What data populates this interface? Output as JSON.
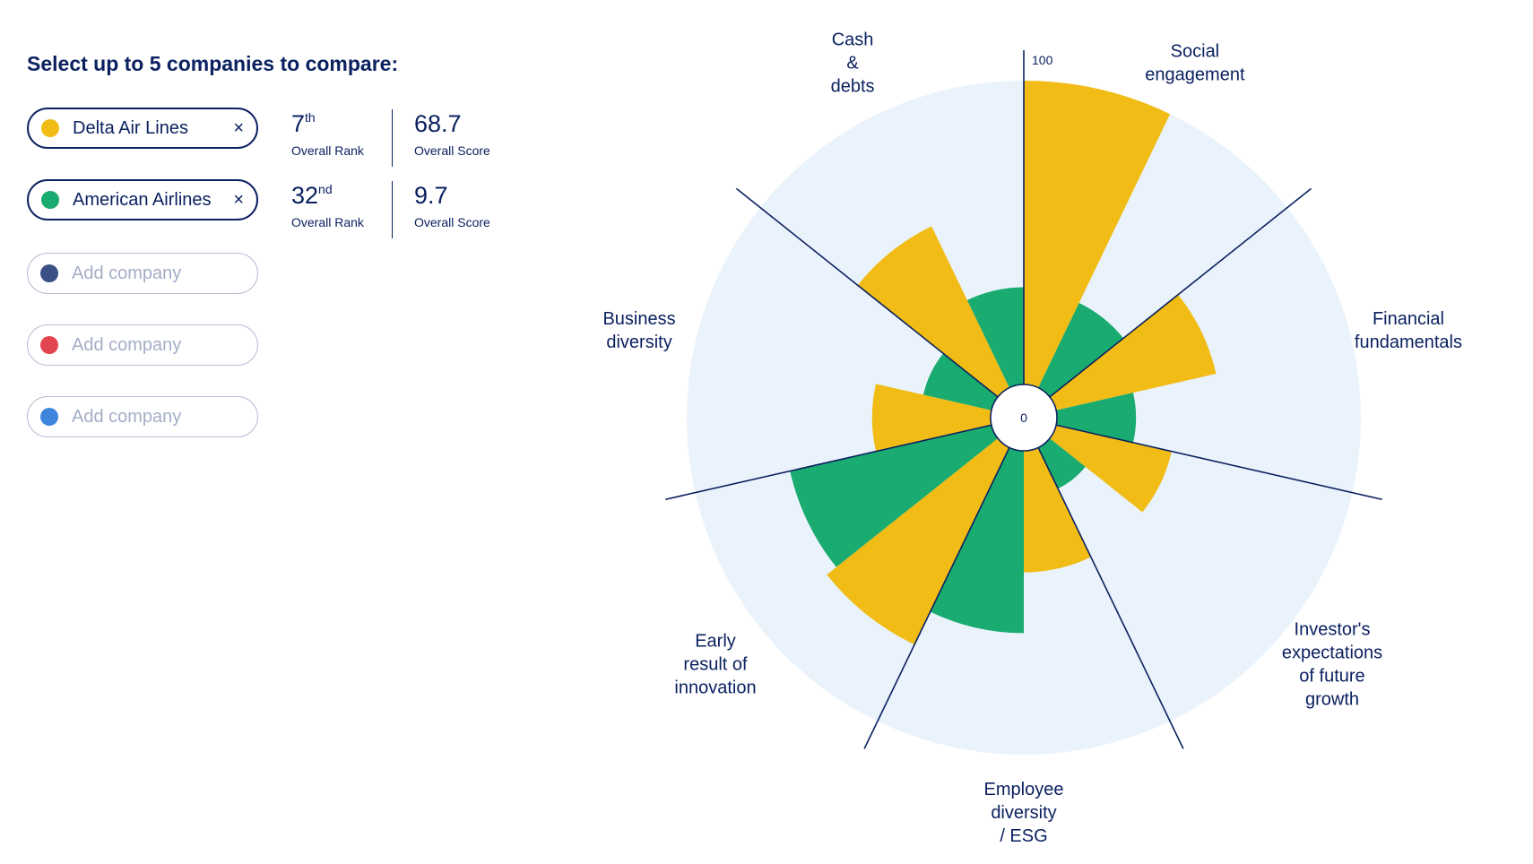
{
  "heading": "Select up to 5 companies to compare:",
  "companies": [
    {
      "name": "Delta Air Lines",
      "color": "#f0bc15",
      "rank_num": "7",
      "rank_suffix": "th",
      "rank_label": "Overall Rank",
      "score": "68.7",
      "score_label": "Overall Score",
      "close": "×"
    },
    {
      "name": "American Airlines",
      "color": "#19ab6f",
      "rank_num": "32",
      "rank_suffix": "nd",
      "rank_label": "Overall Rank",
      "score": "9.7",
      "score_label": "Overall Score",
      "close": "×"
    }
  ],
  "empty_slots": [
    {
      "placeholder": "Add company",
      "color": "#3b4e85"
    },
    {
      "placeholder": "Add company",
      "color": "#e2454f"
    },
    {
      "placeholder": "Add company",
      "color": "#3e86dc"
    }
  ],
  "chart_data": {
    "type": "polar-bar",
    "scale": {
      "min": 0,
      "max": 100,
      "min_label": "0",
      "max_label": "100"
    },
    "background_color": "#eaf3fb",
    "categories": [
      {
        "key": "social",
        "lines": [
          "Social",
          "engagement"
        ]
      },
      {
        "key": "financial",
        "lines": [
          "Financial",
          "fundamentals"
        ]
      },
      {
        "key": "investor",
        "lines": [
          "Investor's",
          "expectations",
          "of future",
          "growth"
        ]
      },
      {
        "key": "employee",
        "lines": [
          "Employee",
          "diversity",
          "/ ESG"
        ]
      },
      {
        "key": "innovation",
        "lines": [
          "Early",
          "result of",
          "innovation"
        ]
      },
      {
        "key": "business",
        "lines": [
          "Business",
          "diversity"
        ]
      },
      {
        "key": "cash",
        "lines": [
          "Cash",
          "&",
          "debts"
        ]
      }
    ],
    "series": [
      {
        "name": "Delta Air Lines",
        "color": "#f0bc15",
        "values": [
          100,
          54,
          39,
          40,
          72,
          39,
          59
        ]
      },
      {
        "name": "American Airlines",
        "color": "#19ab6f",
        "values": [
          31,
          26,
          15,
          60,
          68,
          23,
          32
        ]
      }
    ]
  }
}
